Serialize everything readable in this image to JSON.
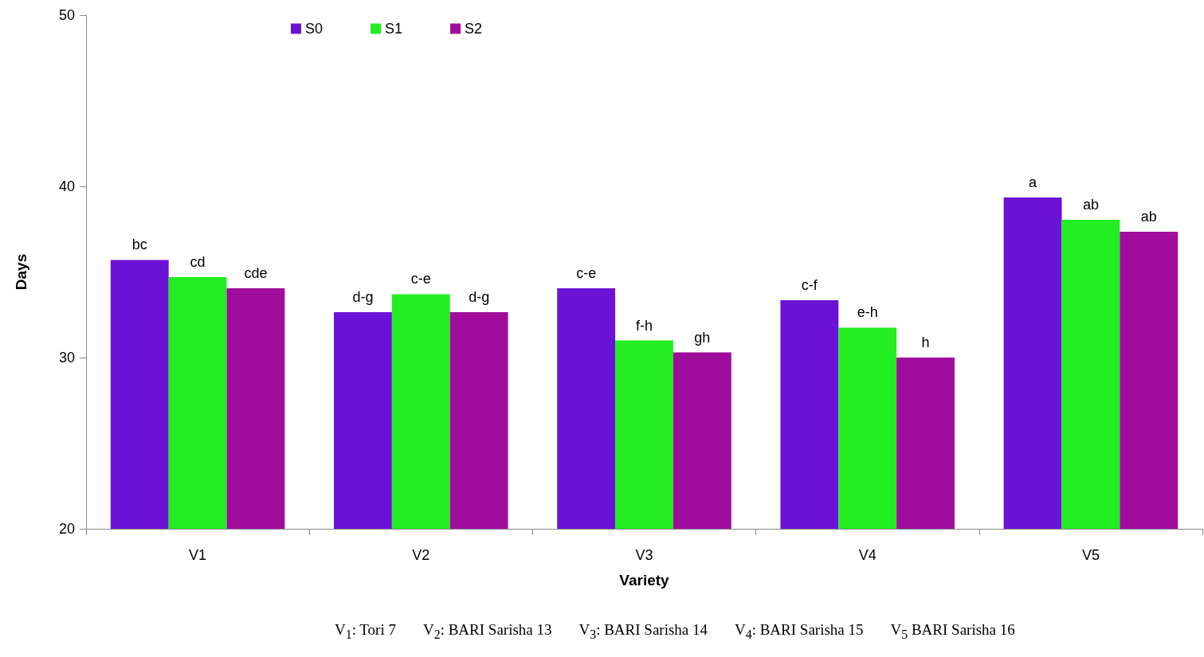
{
  "chart_data": {
    "type": "bar",
    "xlabel": "Variety",
    "ylabel": "Days",
    "categories": [
      "V1",
      "V2",
      "V3",
      "V4",
      "V5"
    ],
    "series": [
      {
        "name": "S0",
        "color": "#6a12d6",
        "values": [
          35.7,
          32.65,
          34.05,
          33.35,
          39.35
        ],
        "value_labels": [
          "bc",
          "d-g",
          "c-e",
          "c-f",
          "a"
        ]
      },
      {
        "name": "S1",
        "color": "#22ee22",
        "values": [
          34.7,
          33.7,
          31.0,
          31.75,
          38.05
        ],
        "value_labels": [
          "cd",
          "c-e",
          "f-h",
          "e-h",
          "ab"
        ]
      },
      {
        "name": "S2",
        "color": "#a00c9c",
        "values": [
          34.05,
          32.65,
          30.3,
          30.0,
          37.35
        ],
        "value_labels": [
          "cde",
          "d-g",
          "gh",
          "h",
          "ab"
        ]
      }
    ],
    "ylim": [
      20,
      50
    ],
    "yticks": [
      20,
      30,
      40,
      50
    ],
    "grid": false,
    "legend": "top",
    "annotations": [
      "V$_{1}$: Tori 7",
      "V$_{2}$: BARI Sarisha 13",
      "V$_{3}$: BARI Sarisha 14",
      "V$_{4}$: BARI Sarisha 15",
      "V$_{5}$ BARI Sarisha 16"
    ]
  }
}
